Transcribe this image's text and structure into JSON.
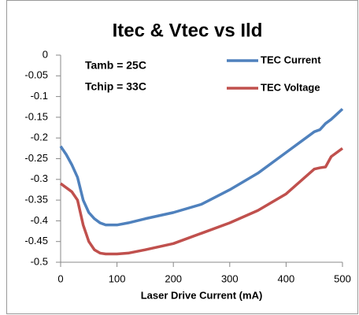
{
  "chart_data": {
    "type": "line",
    "title": "Itec & Vtec vs Ild",
    "x_label": "Laser Drive Current (mA)",
    "annotations": [
      "Tamb = 25C",
      "Tchip = 33C"
    ],
    "x": [
      0,
      10,
      20,
      30,
      40,
      50,
      60,
      70,
      80,
      100,
      120,
      150,
      200,
      250,
      300,
      350,
      400,
      450,
      460,
      470,
      480,
      500
    ],
    "series": [
      {
        "name": "TEC Current",
        "color": "#4f81bd",
        "values": [
          -0.22,
          -0.24,
          -0.265,
          -0.295,
          -0.35,
          -0.38,
          -0.395,
          -0.405,
          -0.41,
          -0.41,
          -0.405,
          -0.395,
          -0.38,
          -0.36,
          -0.325,
          -0.285,
          -0.235,
          -0.185,
          -0.18,
          -0.165,
          -0.155,
          -0.13
        ]
      },
      {
        "name": "TEC Voltage",
        "color": "#c0504d",
        "values": [
          -0.31,
          -0.32,
          -0.33,
          -0.35,
          -0.41,
          -0.45,
          -0.47,
          -0.478,
          -0.48,
          -0.48,
          -0.478,
          -0.47,
          -0.455,
          -0.43,
          -0.405,
          -0.375,
          -0.335,
          -0.275,
          -0.272,
          -0.27,
          -0.245,
          -0.225
        ]
      }
    ],
    "xlim": [
      0,
      500
    ],
    "xticks": [
      0,
      100,
      200,
      300,
      400,
      500
    ],
    "ylim": [
      -0.5,
      0
    ],
    "yticks": [
      0,
      -0.05,
      -0.1,
      -0.15,
      -0.2,
      -0.25,
      -0.3,
      -0.35,
      -0.4,
      -0.45,
      -0.5
    ],
    "legend": "upper right"
  }
}
